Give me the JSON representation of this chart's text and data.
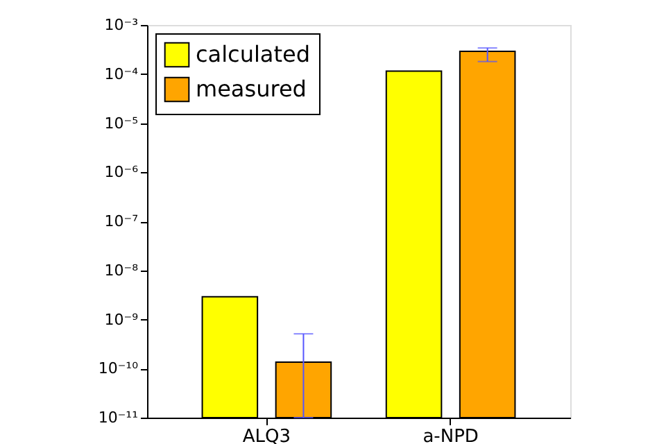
{
  "chart_data": {
    "type": "bar",
    "categories": [
      "ALQ3",
      "a-NPD"
    ],
    "series": [
      {
        "name": "calculated",
        "color": "#ffff00",
        "values": [
          2.9e-09,
          0.000115
        ]
      },
      {
        "name": "measured",
        "color": "#ffa500",
        "values": [
          1.35e-10,
          0.00029
        ],
        "errors": [
          [
            1e-11,
            5.1e-10
          ],
          [
            0.00018,
            0.00034
          ]
        ]
      }
    ],
    "log": "y",
    "ylim": [
      1e-11,
      0.001
    ],
    "yticks": [
      {
        "value": 1e-11,
        "label": "10⁻¹¹"
      },
      {
        "value": 1e-10,
        "label": "10⁻¹⁰"
      },
      {
        "value": 1e-09,
        "label": "10⁻⁹"
      },
      {
        "value": 1e-08,
        "label": "10⁻⁸"
      },
      {
        "value": 1e-07,
        "label": "10⁻⁷"
      },
      {
        "value": 1e-06,
        "label": "10⁻⁶"
      },
      {
        "value": 1e-05,
        "label": "10⁻⁵"
      },
      {
        "value": 0.0001,
        "label": "10⁻⁴"
      },
      {
        "value": 0.001,
        "label": "10⁻³"
      }
    ],
    "legend": "top left",
    "grid": false
  }
}
